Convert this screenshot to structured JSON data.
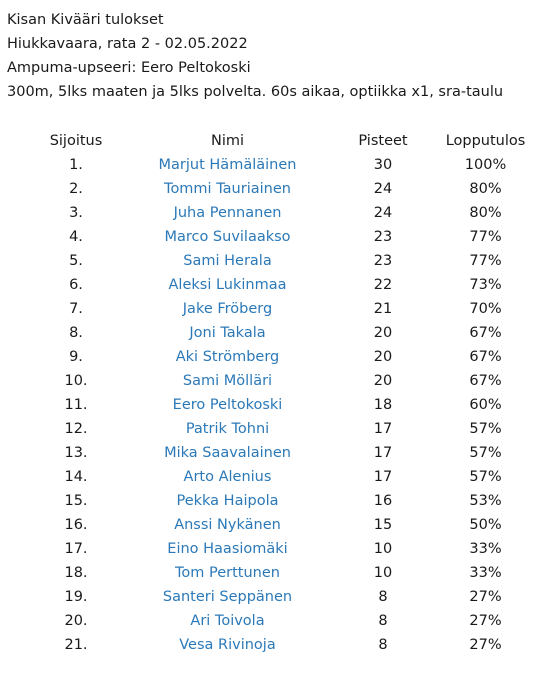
{
  "header": {
    "title": "Kisan Kivääri tulokset",
    "venue": "Hiukkavaara, rata 2 - 02.05.2022",
    "officer": "Ampuma-upseeri: Eero Peltokoski",
    "format": "300m, 5lks maaten ja 5lks polvelta. 60s aikaa, optiikka x1, sra-taulu"
  },
  "table": {
    "columns": [
      "Sijoitus",
      "Nimi",
      "Pisteet",
      "Lopputulos"
    ],
    "rows": [
      {
        "rank": "1.",
        "name": "Marjut Hämäläinen",
        "score": "30",
        "result": "100%"
      },
      {
        "rank": "2.",
        "name": "Tommi Tauriainen",
        "score": "24",
        "result": "80%"
      },
      {
        "rank": "3.",
        "name": "Juha Pennanen",
        "score": "24",
        "result": "80%"
      },
      {
        "rank": "4.",
        "name": "Marco Suvilaakso",
        "score": "23",
        "result": "77%"
      },
      {
        "rank": "5.",
        "name": "Sami Herala",
        "score": "23",
        "result": "77%"
      },
      {
        "rank": "6.",
        "name": "Aleksi Lukinmaa",
        "score": "22",
        "result": "73%"
      },
      {
        "rank": "7.",
        "name": "Jake Fröberg",
        "score": "21",
        "result": "70%"
      },
      {
        "rank": "8.",
        "name": "Joni Takala",
        "score": "20",
        "result": "67%"
      },
      {
        "rank": "9.",
        "name": "Aki Strömberg",
        "score": "20",
        "result": "67%"
      },
      {
        "rank": "10.",
        "name": "Sami Mölläri",
        "score": "20",
        "result": "67%"
      },
      {
        "rank": "11.",
        "name": "Eero Peltokoski",
        "score": "18",
        "result": "60%"
      },
      {
        "rank": "12.",
        "name": "Patrik Tohni",
        "score": "17",
        "result": "57%"
      },
      {
        "rank": "13.",
        "name": "Mika Saavalainen",
        "score": "17",
        "result": "57%"
      },
      {
        "rank": "14.",
        "name": "Arto Alenius",
        "score": "17",
        "result": "57%"
      },
      {
        "rank": "15.",
        "name": "Pekka Haipola",
        "score": "16",
        "result": "53%"
      },
      {
        "rank": "16.",
        "name": "Anssi Nykänen",
        "score": "15",
        "result": "50%"
      },
      {
        "rank": "17.",
        "name": "Eino Haasiomäki",
        "score": "10",
        "result": "33%"
      },
      {
        "rank": "18.",
        "name": "Tom Perttunen",
        "score": "10",
        "result": "33%"
      },
      {
        "rank": "19.",
        "name": "Santeri Seppänen",
        "score": "8",
        "result": "27%"
      },
      {
        "rank": "20.",
        "name": "Ari Toivola",
        "score": "8",
        "result": "27%"
      },
      {
        "rank": "21.",
        "name": "Vesa Rivinoja",
        "score": "8",
        "result": "27%"
      }
    ]
  },
  "colors": {
    "text": "#1a1a1a",
    "link": "#2b79b8",
    "background": "#ffffff"
  }
}
